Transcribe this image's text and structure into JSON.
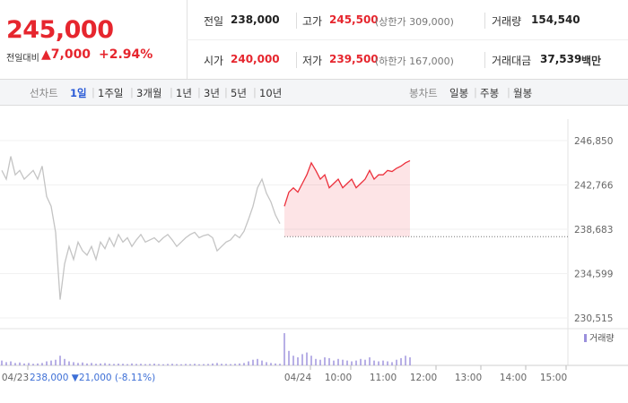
{
  "header": {
    "price": "245,000",
    "change_label": "전일대비",
    "change": "▲7,000",
    "change_pct": "+2.94%",
    "stats": [
      [
        {
          "label": "전일",
          "value": "238,000"
        },
        {
          "label": "고가",
          "value": "245,500",
          "note": "(상한가 309,000)"
        },
        {
          "label": "거래량",
          "value": "154,540"
        }
      ],
      [
        {
          "label": "시가",
          "value": "240,000"
        },
        {
          "label": "저가",
          "value": "239,500",
          "note": "(하한가 167,000)"
        },
        {
          "label": "거래대금",
          "value": "37,539",
          "unit": "백만"
        }
      ]
    ]
  },
  "tabs": {
    "line_label": "선차트",
    "line_items": [
      "1일",
      "1주일",
      "3개월",
      "1년",
      "3년",
      "5년",
      "10년"
    ],
    "active": 0,
    "candle_label": "봉차트",
    "candle_items": [
      "일봉",
      "주봉",
      "월봉"
    ]
  },
  "chart_data": {
    "type": "line",
    "note": "238,000 ▼21,000 (-8.11%)",
    "base_value": 238000,
    "ylim": [
      230515,
      246850
    ],
    "yticks": [
      {
        "value": 230515,
        "label": "230,515"
      },
      {
        "value": 234599,
        "label": "234,599"
      },
      {
        "value": 238683,
        "label": "238,683"
      },
      {
        "value": 242766,
        "label": "242,766"
      },
      {
        "value": 246850,
        "label": "246,850"
      }
    ],
    "grid": true,
    "categories": [
      null,
      null,
      null,
      "04/23",
      null,
      null,
      null,
      null,
      null,
      null,
      null,
      null,
      null,
      null,
      null,
      null,
      null,
      null,
      null,
      null,
      null,
      null,
      null,
      null,
      null,
      null,
      null,
      null,
      null,
      null,
      null,
      null,
      null,
      null,
      null,
      null,
      null,
      null,
      null,
      null,
      null,
      null,
      null,
      null,
      null,
      null,
      null,
      null,
      null,
      null,
      null,
      null,
      null,
      null,
      null,
      null,
      null,
      null,
      null,
      null,
      null,
      null,
      null,
      null,
      null,
      null,
      "04/24",
      null,
      null,
      null,
      null,
      null,
      null,
      null,
      null,
      "10:00",
      null,
      null,
      null,
      null,
      null,
      null,
      null,
      null,
      null,
      "11:00",
      null,
      null,
      null,
      null,
      null,
      null,
      null,
      null,
      "12:00",
      null,
      null,
      null,
      null,
      null,
      null,
      null,
      null,
      null,
      "13:00",
      null,
      null,
      null,
      null,
      null,
      null,
      null,
      null,
      null,
      "14:00",
      null,
      null,
      null,
      null,
      null,
      null,
      null,
      null,
      "15:00",
      null,
      null,
      null
    ],
    "series": [
      {
        "color": "#c4c4c4",
        "fill": false,
        "values": [
          244100,
          243300,
          245400,
          243700,
          244100,
          243300,
          243700,
          244100,
          243300,
          244500,
          241700,
          240800,
          238400,
          232200,
          235500,
          237100,
          235900,
          237500,
          236700,
          236300,
          237100,
          235900,
          237500,
          236900,
          237900,
          237100,
          238200,
          237500,
          237900,
          237100,
          237700,
          238200,
          237500,
          237700,
          237900,
          237500,
          237900,
          238200,
          237700,
          237100,
          237500,
          237900,
          238200,
          238400,
          237900,
          238100,
          238200,
          237900,
          236700,
          237100,
          237500,
          237700,
          238200,
          237900,
          238500,
          239600,
          240800,
          242500,
          243300,
          242000,
          241200,
          240000,
          239200,
          null,
          null,
          null,
          null,
          null,
          null,
          null,
          null,
          null,
          null,
          null,
          null,
          null,
          null,
          null,
          null,
          null,
          null,
          null,
          null,
          null,
          null,
          null,
          null,
          null,
          null,
          null,
          null,
          null,
          null,
          null,
          null,
          null,
          null,
          null,
          null,
          null,
          null,
          null,
          null,
          null,
          null,
          null,
          null,
          null,
          null,
          null,
          null,
          null,
          null,
          null,
          null,
          null,
          null,
          null,
          null,
          null,
          null,
          null,
          null,
          null,
          null,
          null,
          null
        ]
      },
      {
        "color": "#ec2f3b",
        "fill": true,
        "values": [
          null,
          null,
          null,
          null,
          null,
          null,
          null,
          null,
          null,
          null,
          null,
          null,
          null,
          null,
          null,
          null,
          null,
          null,
          null,
          null,
          null,
          null,
          null,
          null,
          null,
          null,
          null,
          null,
          null,
          null,
          null,
          null,
          null,
          null,
          null,
          null,
          null,
          null,
          null,
          null,
          null,
          null,
          null,
          null,
          null,
          null,
          null,
          null,
          null,
          null,
          null,
          null,
          null,
          null,
          null,
          null,
          null,
          null,
          null,
          null,
          null,
          null,
          null,
          240800,
          242100,
          242500,
          242100,
          242900,
          243700,
          244800,
          244100,
          243300,
          243700,
          242500,
          242900,
          243300,
          242500,
          242900,
          243300,
          242500,
          242900,
          243300,
          244100,
          243300,
          243700,
          243700,
          244100,
          244000,
          244300,
          244500,
          244800,
          245000,
          null,
          null,
          null,
          null,
          null,
          null,
          null,
          null,
          null,
          null,
          null,
          null,
          null,
          null,
          null,
          null,
          null,
          null,
          null,
          null,
          null,
          null,
          null,
          null,
          null,
          null,
          null,
          null,
          null,
          null,
          null,
          null,
          null,
          null,
          null
        ]
      }
    ],
    "volume": {
      "name": "거래량",
      "color": "#9a8fdc",
      "values": [
        3000,
        2000,
        2500,
        1500,
        1800,
        1200,
        1500,
        1000,
        1200,
        1500,
        2500,
        3000,
        3500,
        6000,
        4000,
        2500,
        2000,
        1500,
        1800,
        1200,
        1500,
        1000,
        1200,
        1400,
        1000,
        900,
        1100,
        1000,
        800,
        1200,
        900,
        1000,
        800,
        900,
        1100,
        800,
        700,
        900,
        1000,
        800,
        700,
        900,
        800,
        1000,
        700,
        800,
        900,
        1200,
        1500,
        1000,
        900,
        800,
        1000,
        1200,
        1500,
        2500,
        3500,
        4000,
        3000,
        2000,
        1500,
        1200,
        1000,
        20000,
        9000,
        6000,
        5000,
        7000,
        8000,
        6000,
        4000,
        3500,
        5000,
        4500,
        3000,
        4000,
        3500,
        3000,
        2500,
        3000,
        4000,
        3500,
        5000,
        3000,
        2500,
        3000,
        2500,
        2000,
        3500,
        4500,
        6000,
        5000,
        null,
        null,
        null,
        null,
        null,
        null,
        null,
        null,
        null,
        null,
        null,
        null,
        null,
        null,
        null,
        null,
        null,
        null,
        null,
        null,
        null,
        null,
        null,
        null,
        null,
        null,
        null,
        null,
        null,
        null,
        null,
        null,
        null,
        null,
        null
      ]
    }
  }
}
